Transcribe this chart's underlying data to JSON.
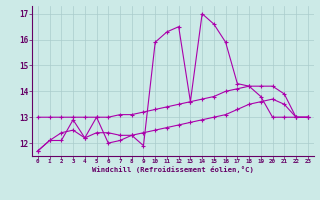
{
  "xlabel": "Windchill (Refroidissement éolien,°C)",
  "background_color": "#cceae7",
  "line_color": "#aa00aa",
  "grid_color": "#aacccc",
  "xlim": [
    -0.5,
    23.5
  ],
  "ylim": [
    11.5,
    17.3
  ],
  "xticks": [
    0,
    1,
    2,
    3,
    4,
    5,
    6,
    7,
    8,
    9,
    10,
    11,
    12,
    13,
    14,
    15,
    16,
    17,
    18,
    19,
    20,
    21,
    22,
    23
  ],
  "yticks": [
    12,
    13,
    14,
    15,
    16,
    17
  ],
  "line1_jagged": [
    11.7,
    12.1,
    12.1,
    12.9,
    12.2,
    13.0,
    12.0,
    12.1,
    12.3,
    11.9,
    15.9,
    16.3,
    16.5,
    13.6,
    17.0,
    16.6,
    15.9,
    14.3,
    14.2,
    13.8,
    13.0,
    13.0,
    13.0,
    13.0
  ],
  "line2_upper": [
    13.0,
    13.0,
    13.0,
    13.0,
    13.0,
    13.0,
    13.0,
    13.1,
    13.1,
    13.2,
    13.3,
    13.4,
    13.5,
    13.6,
    13.7,
    13.8,
    14.0,
    14.1,
    14.2,
    14.2,
    14.2,
    13.9,
    13.0,
    13.0
  ],
  "line3_lower": [
    11.7,
    12.1,
    12.4,
    12.5,
    12.2,
    12.4,
    12.4,
    12.3,
    12.3,
    12.4,
    12.5,
    12.6,
    12.7,
    12.8,
    12.9,
    13.0,
    13.1,
    13.3,
    13.5,
    13.6,
    13.7,
    13.5,
    13.0,
    13.0
  ]
}
